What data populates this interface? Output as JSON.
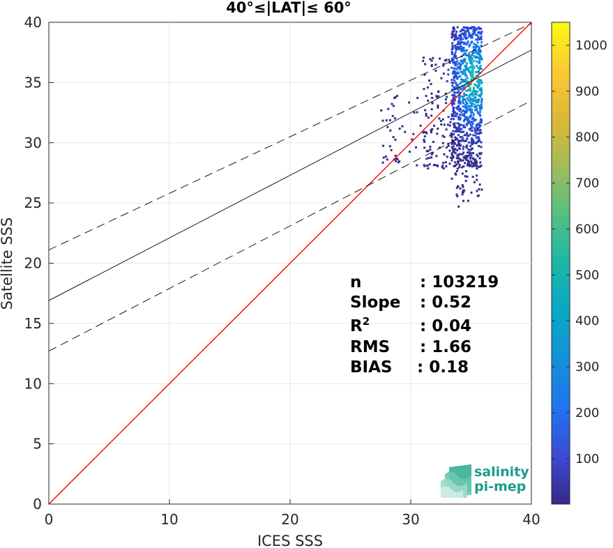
{
  "chart_data": {
    "type": "heatmap",
    "title": "40°≤|LAT|≤ 60°",
    "xlabel": "ICES SSS",
    "ylabel": "Satellite SSS",
    "xlim": [
      0,
      40
    ],
    "ylim": [
      0,
      40
    ],
    "xticks": [
      "0",
      "10",
      "20",
      "30",
      "40"
    ],
    "yticks": [
      "0",
      "5",
      "10",
      "15",
      "20",
      "25",
      "30",
      "35",
      "40"
    ],
    "grid": true,
    "colorbar": {
      "range": [
        1,
        1050
      ],
      "ticks": [
        "100",
        "200",
        "300",
        "400",
        "500",
        "600",
        "700",
        "800",
        "900",
        "1000"
      ],
      "colormap": "parula"
    },
    "lines": [
      {
        "kind": "one-to-one",
        "color": "#ff0000",
        "intercept": 0,
        "slope": 1
      },
      {
        "kind": "regression",
        "color": "#000000",
        "intercept": 16.9,
        "slope": 0.52
      },
      {
        "kind": "regression-upper",
        "color": "#000000",
        "dashed": true,
        "intercept": 21.1,
        "slope": 0.47
      },
      {
        "kind": "regression-lower",
        "color": "#000000",
        "dashed": true,
        "intercept": 12.7,
        "slope": 0.52
      }
    ],
    "density_cluster": {
      "x_range": [
        27.5,
        35.9
      ],
      "y_range": [
        24.4,
        39.7
      ],
      "peak": [
        35.2,
        35.3
      ]
    },
    "stats": [
      {
        "label": "n",
        "value": ": 103219"
      },
      {
        "label": "Slope",
        "value": ": 0.52"
      },
      {
        "label": "R",
        "sup": "2",
        "value": ": 0.04"
      },
      {
        "label": "RMS",
        "value": ": 1.66"
      },
      {
        "label": "BIAS",
        "value": ": 0.18"
      }
    ]
  },
  "logo": {
    "line1": "salinity",
    "line2": "pi-mep"
  }
}
